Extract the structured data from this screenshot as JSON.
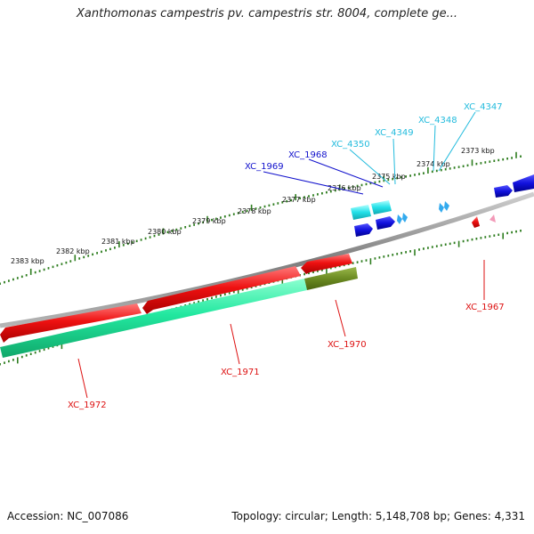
{
  "title": "Xanthomonas campestris pv. campestris str. 8004, complete ge...",
  "footer": {
    "accession": "Accession: NC_007086",
    "summary": "Topology: circular; Length: 5,148,708 bp; Genes: 4,331"
  },
  "kbp_ticks": [
    "2373 kbp",
    "2374 kbp",
    "2375 kbp",
    "2376 kbp",
    "2377 kbp",
    "2378 kbp",
    "2379 kbp",
    "2380 kbp",
    "2381 kbp",
    "2382 kbp",
    "2383 kbp"
  ],
  "gene_labels": [
    "XC_4347",
    "XC_4348",
    "XC_4349",
    "XC_4350",
    "XC_1968",
    "XC_1969",
    "XC_1967",
    "XC_1970",
    "XC_1971",
    "XC_1972"
  ],
  "colors": {
    "backbone": "#8a8a8a",
    "tick": "#2e7d1f",
    "red": "#ee1111",
    "green": "#22e8a0",
    "olive": "#6b8a22",
    "blue": "#1111dd",
    "cyan": "#22e0e8",
    "lightblue": "#33aaee",
    "pink": "#f39ab8",
    "label_red": "#dd1111",
    "label_blue": "#1111cc",
    "label_cyan": "#22bbdd"
  }
}
